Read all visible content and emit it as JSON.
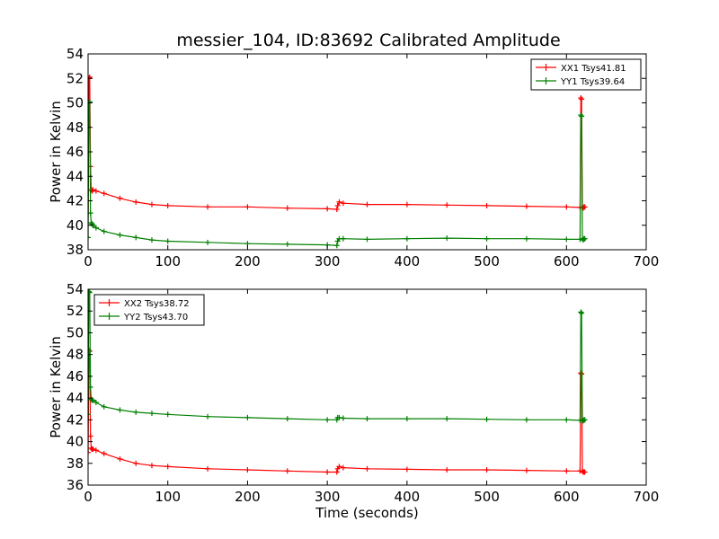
{
  "title": "messier_104, ID:83692 Calibrated Amplitude",
  "xlabel": "Time (seconds)",
  "colors": {
    "red": "#ff0000",
    "green": "#008000",
    "axes": "#000000",
    "legend_border": "#000000"
  },
  "chart_data": [
    {
      "type": "line",
      "panel": "top",
      "xlabel": "",
      "ylabel": "Power in Kelvin",
      "xlim": [
        0,
        700
      ],
      "ylim": [
        38,
        54
      ],
      "xticks": [
        0,
        100,
        200,
        300,
        400,
        500,
        600,
        700
      ],
      "yticks": [
        38,
        40,
        42,
        44,
        46,
        48,
        50,
        52,
        54
      ],
      "grid": false,
      "legend_position": "top-right",
      "series": [
        {
          "name": "XX1 Tsys41.81",
          "color": "#ff0000",
          "x": [
            0,
            1,
            2,
            3,
            4,
            5,
            6,
            10,
            20,
            40,
            60,
            80,
            100,
            150,
            200,
            250,
            300,
            312,
            313,
            315,
            320,
            350,
            400,
            450,
            500,
            550,
            600,
            617,
            618,
            619,
            620,
            621,
            622,
            623
          ],
          "y": [
            41.0,
            52.0,
            52.1,
            44.8,
            42.9,
            42.8,
            42.9,
            42.8,
            42.6,
            42.2,
            41.9,
            41.7,
            41.6,
            41.5,
            41.5,
            41.4,
            41.35,
            41.3,
            41.6,
            41.9,
            41.8,
            41.7,
            41.7,
            41.65,
            41.6,
            41.55,
            41.5,
            41.45,
            50.4,
            50.3,
            41.5,
            41.4,
            41.5,
            41.5
          ]
        },
        {
          "name": "YY1 Tsys39.64",
          "color": "#008000",
          "x": [
            0,
            1,
            2,
            3,
            4,
            5,
            6,
            10,
            20,
            40,
            60,
            80,
            100,
            150,
            200,
            250,
            300,
            312,
            313,
            315,
            320,
            350,
            400,
            450,
            500,
            550,
            600,
            617,
            618,
            619,
            620,
            621,
            622,
            623
          ],
          "y": [
            39.0,
            50.0,
            50.1,
            41.0,
            40.2,
            40.1,
            40.0,
            39.8,
            39.5,
            39.2,
            39.0,
            38.8,
            38.7,
            38.6,
            38.5,
            38.45,
            38.4,
            38.35,
            38.7,
            38.9,
            38.9,
            38.85,
            38.9,
            38.95,
            38.9,
            38.9,
            38.85,
            38.85,
            49.0,
            48.9,
            38.9,
            38.8,
            38.9,
            38.9
          ]
        }
      ]
    },
    {
      "type": "line",
      "panel": "bottom",
      "xlabel": "Time (seconds)",
      "ylabel": "Power in Kelvin",
      "xlim": [
        0,
        700
      ],
      "ylim": [
        36,
        54
      ],
      "xticks": [
        0,
        100,
        200,
        300,
        400,
        500,
        600,
        700
      ],
      "yticks": [
        36,
        38,
        40,
        42,
        44,
        46,
        48,
        50,
        52,
        54
      ],
      "grid": false,
      "legend_position": "top-left",
      "series": [
        {
          "name": "XX2 Tsys38.72",
          "color": "#ff0000",
          "x": [
            0,
            1,
            2,
            3,
            4,
            5,
            6,
            10,
            20,
            40,
            60,
            80,
            100,
            150,
            200,
            250,
            300,
            312,
            313,
            315,
            320,
            350,
            400,
            450,
            500,
            550,
            600,
            617,
            618,
            619,
            620,
            621,
            622,
            623
          ],
          "y": [
            39.0,
            48.4,
            48.3,
            40.5,
            39.4,
            39.3,
            39.3,
            39.2,
            38.9,
            38.4,
            38.0,
            37.8,
            37.7,
            37.5,
            37.4,
            37.3,
            37.2,
            37.2,
            37.5,
            37.7,
            37.6,
            37.5,
            37.45,
            37.4,
            37.4,
            37.35,
            37.3,
            37.3,
            46.3,
            46.2,
            37.3,
            37.2,
            37.2,
            37.2
          ]
        },
        {
          "name": "YY2 Tsys43.70",
          "color": "#008000",
          "x": [
            0,
            1,
            2,
            3,
            4,
            5,
            6,
            10,
            20,
            40,
            60,
            80,
            100,
            150,
            200,
            250,
            300,
            312,
            313,
            315,
            320,
            350,
            400,
            450,
            500,
            550,
            600,
            617,
            618,
            619,
            620,
            621,
            622,
            623
          ],
          "y": [
            42.5,
            53.8,
            53.7,
            45.0,
            43.9,
            43.8,
            43.8,
            43.6,
            43.2,
            42.9,
            42.7,
            42.6,
            42.5,
            42.3,
            42.2,
            42.1,
            42.0,
            42.0,
            42.2,
            42.2,
            42.15,
            42.1,
            42.1,
            42.1,
            42.05,
            42.0,
            42.0,
            41.95,
            51.9,
            51.8,
            42.0,
            41.9,
            42.0,
            42.0
          ]
        }
      ]
    }
  ]
}
